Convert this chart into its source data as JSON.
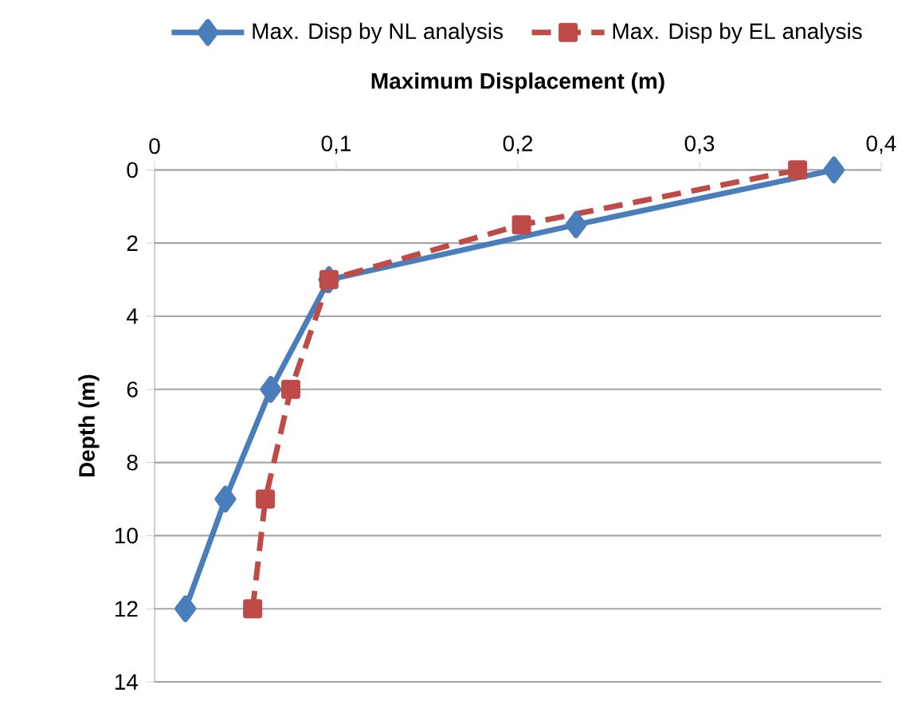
{
  "chart_data": {
    "type": "line",
    "xlabel": "Maximum Displacement (m)",
    "ylabel": "Depth (m)",
    "xlim": [
      0,
      0.4
    ],
    "xticks": [
      0,
      {
        "value": 0.1,
        "label": "0,1"
      },
      {
        "value": 0.2,
        "label": "0,2"
      },
      {
        "value": 0.3,
        "label": "0,3"
      },
      {
        "value": 0.4,
        "label": "0,4"
      }
    ],
    "ylim": [
      14,
      0
    ],
    "yticks": [
      0,
      2,
      4,
      6,
      8,
      10,
      12,
      14
    ],
    "grid": "y",
    "legend": "top",
    "series": [
      {
        "name": "Max. Disp by NL analysis",
        "color": "#4a7ebb",
        "marker": "diamond",
        "line_style": "solid",
        "x": [
          0.374,
          0.232,
          0.096,
          0.064,
          0.039,
          0.017
        ],
        "values": [
          0,
          1.5,
          3,
          6,
          9,
          12
        ]
      },
      {
        "name": "Max. Disp by EL analysis",
        "color": "#be4b48",
        "marker": "square",
        "line_style": "dashed",
        "x": [
          0.354,
          0.202,
          0.096,
          0.075,
          0.061,
          0.054
        ],
        "values": [
          0,
          1.5,
          3,
          6,
          9,
          12
        ]
      }
    ]
  }
}
